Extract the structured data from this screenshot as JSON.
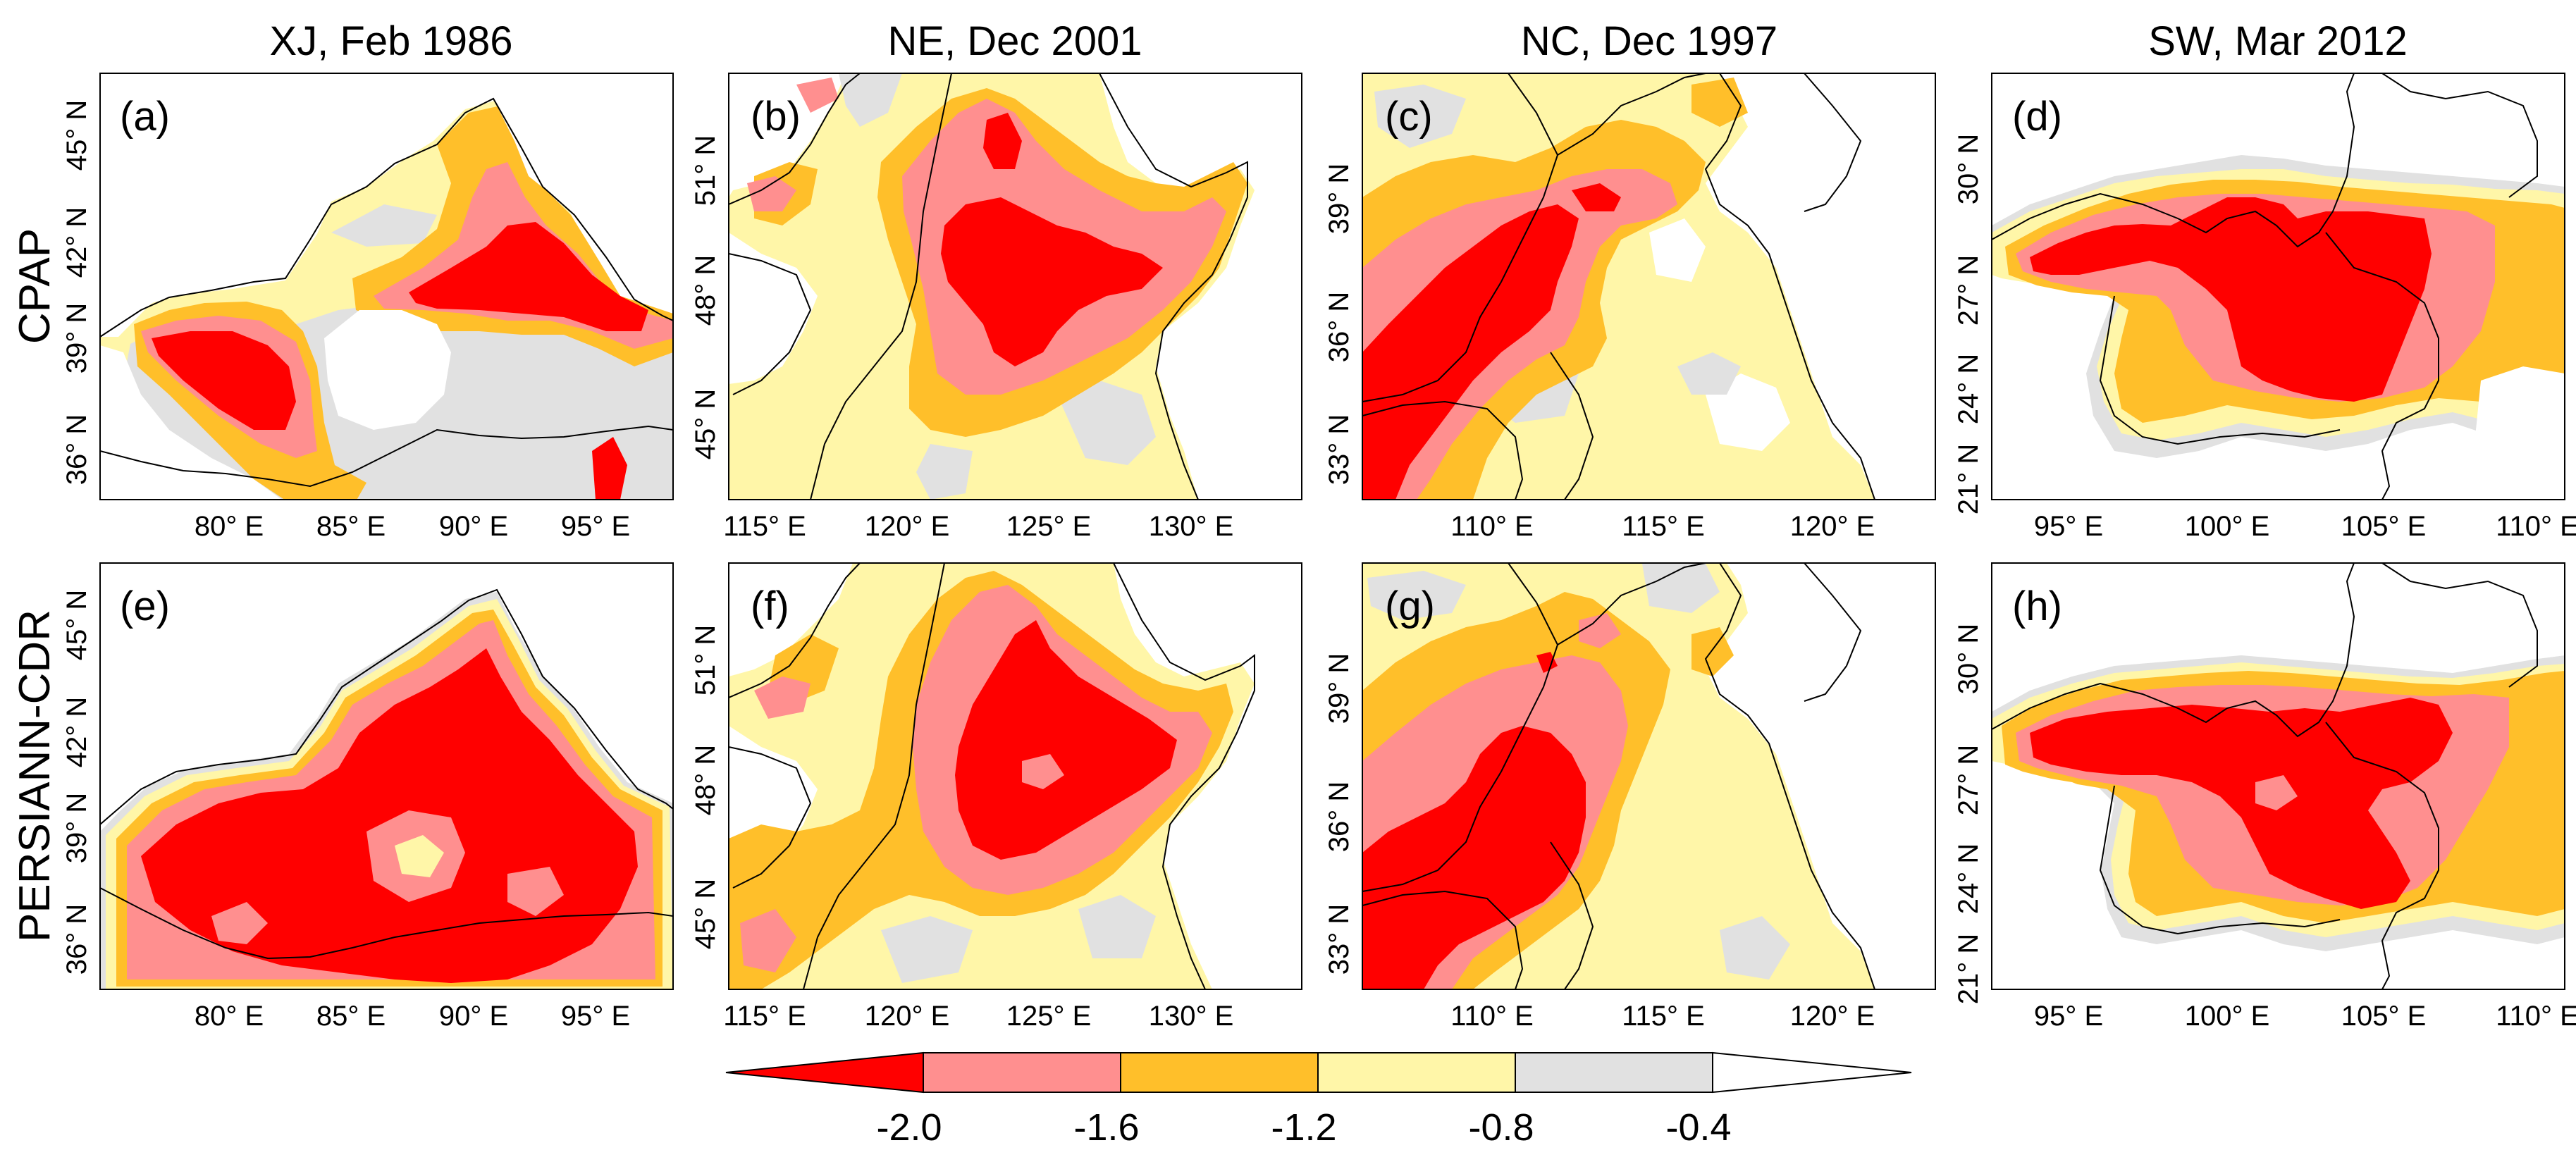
{
  "colors": {
    "class_1": "#ff0000",
    "class_2": "#ff8f8f",
    "class_3": "#ffbf2a",
    "class_4": "#fff6a8",
    "class_5": "#e1e1e1",
    "class_6": "#ffffff",
    "border": "#000000"
  },
  "columns": [
    {
      "title": "XJ, Feb 1986",
      "lon_ticks": [
        "80° E",
        "85° E",
        "90° E",
        "95° E"
      ],
      "lat_ticks": [
        "45° N",
        "42° N",
        "39° N",
        "36° N"
      ]
    },
    {
      "title": "NE, Dec 2001",
      "lon_ticks": [
        "115° E",
        "120° E",
        "125° E",
        "130° E"
      ],
      "lat_ticks": [
        "51° N",
        "48° N",
        "45° N"
      ]
    },
    {
      "title": "NC, Dec 1997",
      "lon_ticks": [
        "110° E",
        "115° E",
        "120° E"
      ],
      "lat_ticks": [
        "39° N",
        "36° N",
        "33° N"
      ]
    },
    {
      "title": "SW, Mar 2012",
      "lon_ticks": [
        "95° E",
        "100° E",
        "105° E",
        "110° E"
      ],
      "lat_ticks": [
        "30° N",
        "27° N",
        "24° N",
        "21° N"
      ]
    }
  ],
  "rows": [
    {
      "title": "CPAP",
      "panels": [
        "(a)",
        "(b)",
        "(c)",
        "(d)"
      ]
    },
    {
      "title": "PERSIANN-CDR",
      "panels": [
        "(e)",
        "(f)",
        "(g)",
        "(h)"
      ]
    }
  ],
  "colorbar": {
    "labels": [
      "-2.0",
      "-1.6",
      "-1.2",
      "-0.8",
      "-0.4"
    ],
    "colors": [
      "#ff0000",
      "#ff8f8f",
      "#ffbf2a",
      "#fff6a8",
      "#e1e1e1",
      "#ffffff"
    ]
  }
}
